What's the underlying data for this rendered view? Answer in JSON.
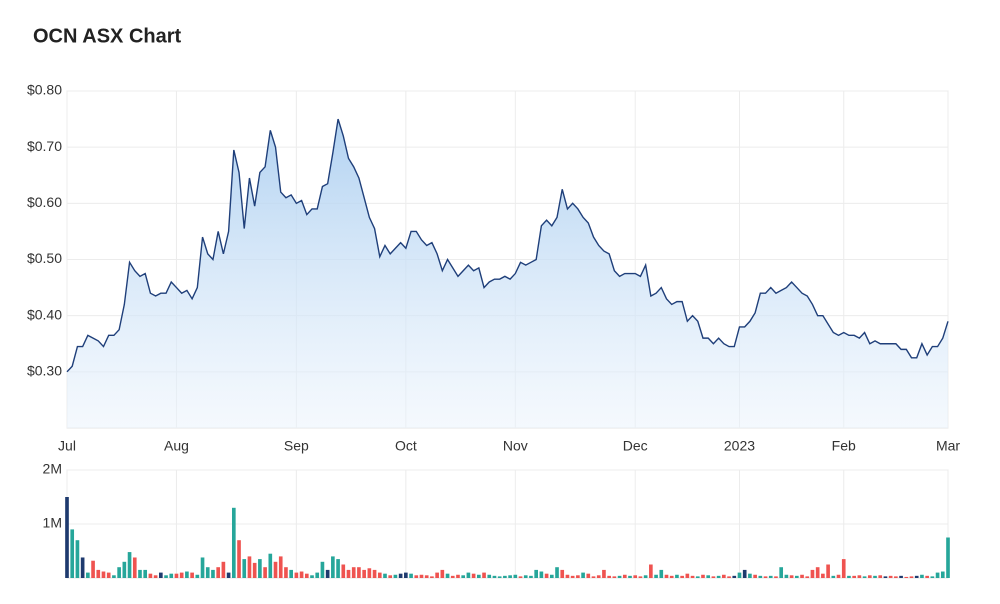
{
  "chart_data": [
    {
      "type": "area",
      "title": "OCN ASX Chart",
      "color": "#1f3f7a",
      "grid": true,
      "categories": [
        "Jul",
        null,
        null,
        null,
        null,
        null,
        null,
        null,
        null,
        null,
        null,
        null,
        null,
        null,
        null,
        null,
        null,
        null,
        null,
        null,
        null,
        "Aug",
        null,
        null,
        null,
        null,
        null,
        null,
        null,
        null,
        null,
        null,
        null,
        null,
        null,
        null,
        null,
        null,
        null,
        null,
        null,
        null,
        null,
        null,
        "Sep",
        null,
        null,
        null,
        null,
        null,
        null,
        null,
        null,
        null,
        null,
        null,
        null,
        null,
        null,
        null,
        null,
        null,
        null,
        null,
        null,
        "Oct",
        null,
        null,
        null,
        null,
        null,
        null,
        null,
        null,
        null,
        null,
        null,
        null,
        null,
        null,
        null,
        null,
        null,
        null,
        null,
        null,
        "Nov",
        null,
        null,
        null,
        null,
        null,
        null,
        null,
        null,
        null,
        null,
        null,
        null,
        null,
        null,
        null,
        null,
        null,
        null,
        null,
        null,
        null,
        null,
        "Dec",
        null,
        null,
        null,
        null,
        null,
        null,
        null,
        null,
        null,
        null,
        null,
        null,
        null,
        null,
        null,
        null,
        null,
        null,
        null,
        "2023",
        null,
        null,
        null,
        null,
        null,
        null,
        null,
        null,
        null,
        null,
        null,
        null,
        null,
        null,
        null,
        null,
        null,
        null,
        null,
        "Feb",
        null,
        null,
        null,
        null,
        null,
        null,
        null,
        null,
        null,
        null,
        null,
        null,
        null,
        null,
        null,
        null,
        null,
        null,
        null,
        "Mar"
      ],
      "values": [
        0.3,
        0.31,
        0.345,
        0.345,
        0.365,
        0.36,
        0.355,
        0.345,
        0.365,
        0.365,
        0.375,
        0.42,
        0.495,
        0.48,
        0.47,
        0.475,
        0.44,
        0.435,
        0.44,
        0.44,
        0.46,
        0.45,
        0.44,
        0.445,
        0.43,
        0.45,
        0.54,
        0.51,
        0.5,
        0.55,
        0.51,
        0.55,
        0.695,
        0.655,
        0.555,
        0.645,
        0.595,
        0.655,
        0.665,
        0.73,
        0.7,
        0.62,
        0.61,
        0.615,
        0.6,
        0.605,
        0.58,
        0.59,
        0.59,
        0.63,
        0.635,
        0.69,
        0.75,
        0.72,
        0.68,
        0.665,
        0.645,
        0.61,
        0.575,
        0.555,
        0.505,
        0.525,
        0.51,
        0.52,
        0.53,
        0.52,
        0.55,
        0.55,
        0.535,
        0.525,
        0.53,
        0.51,
        0.48,
        0.5,
        0.485,
        0.47,
        0.48,
        0.49,
        0.48,
        0.485,
        0.45,
        0.46,
        0.465,
        0.465,
        0.47,
        0.465,
        0.475,
        0.495,
        0.49,
        0.495,
        0.5,
        0.56,
        0.57,
        0.56,
        0.575,
        0.625,
        0.59,
        0.6,
        0.59,
        0.575,
        0.565,
        0.54,
        0.525,
        0.515,
        0.51,
        0.48,
        0.47,
        0.475,
        0.475,
        0.475,
        0.47,
        0.49,
        0.435,
        0.44,
        0.45,
        0.43,
        0.42,
        0.425,
        0.425,
        0.39,
        0.4,
        0.39,
        0.36,
        0.36,
        0.35,
        0.36,
        0.35,
        0.345,
        0.345,
        0.38,
        0.38,
        0.39,
        0.405,
        0.44,
        0.44,
        0.45,
        0.44,
        0.445,
        0.45,
        0.46,
        0.45,
        0.44,
        0.435,
        0.42,
        0.4,
        0.4,
        0.385,
        0.37,
        0.365,
        0.37,
        0.365,
        0.365,
        0.36,
        0.37,
        0.35,
        0.355,
        0.35,
        0.35,
        0.35,
        0.35,
        0.34,
        0.34,
        0.325,
        0.325,
        0.35,
        0.33,
        0.345,
        0.345,
        0.36,
        0.39
      ],
      "ylim": [
        0.2,
        0.8
      ],
      "yticks": [
        {
          "value": 0.3,
          "label": "$0.30"
        },
        {
          "value": 0.4,
          "label": "$0.40"
        },
        {
          "value": 0.5,
          "label": "$0.50"
        },
        {
          "value": 0.6,
          "label": "$0.60"
        },
        {
          "value": 0.7,
          "label": "$0.70"
        },
        {
          "value": 0.8,
          "label": "$0.80"
        }
      ]
    },
    {
      "type": "bar",
      "grid": true,
      "values": [
        1500000,
        900000,
        700000,
        380000,
        100000,
        320000,
        150000,
        120000,
        100000,
        50000,
        200000,
        300000,
        480000,
        380000,
        150000,
        150000,
        80000,
        50000,
        100000,
        50000,
        80000,
        80000,
        100000,
        120000,
        100000,
        60000,
        380000,
        200000,
        150000,
        200000,
        300000,
        100000,
        1300000,
        700000,
        350000,
        400000,
        280000,
        350000,
        200000,
        450000,
        300000,
        400000,
        200000,
        150000,
        100000,
        120000,
        80000,
        50000,
        100000,
        300000,
        150000,
        400000,
        350000,
        250000,
        150000,
        200000,
        200000,
        150000,
        180000,
        150000,
        100000,
        80000,
        50000,
        60000,
        80000,
        100000,
        80000,
        50000,
        60000,
        50000,
        30000,
        100000,
        150000,
        80000,
        40000,
        60000,
        50000,
        100000,
        80000,
        60000,
        100000,
        60000,
        40000,
        30000,
        40000,
        50000,
        60000,
        30000,
        50000,
        40000,
        150000,
        120000,
        80000,
        60000,
        200000,
        150000,
        60000,
        40000,
        50000,
        100000,
        80000,
        30000,
        50000,
        150000,
        40000,
        30000,
        40000,
        60000,
        40000,
        50000,
        30000,
        50000,
        250000,
        60000,
        150000,
        60000,
        40000,
        60000,
        40000,
        80000,
        40000,
        30000,
        60000,
        50000,
        30000,
        40000,
        60000,
        30000,
        40000,
        100000,
        150000,
        80000,
        60000,
        40000,
        30000,
        40000,
        30000,
        200000,
        60000,
        50000,
        40000,
        60000,
        30000,
        150000,
        200000,
        80000,
        250000,
        40000,
        60000,
        350000,
        40000,
        40000,
        50000,
        30000,
        50000,
        40000,
        50000,
        30000,
        40000,
        30000,
        40000,
        20000,
        30000,
        40000,
        60000,
        40000,
        30000,
        100000,
        120000,
        750000
      ],
      "colors": [
        "#1e3a6e",
        "#26a69a",
        "#26a69a",
        "#1e3a6e",
        "#26a69a",
        "#ef5350",
        "#ef5350",
        "#ef5350",
        "#ef5350",
        "#26a69a",
        "#26a69a",
        "#26a69a",
        "#26a69a",
        "#ef5350",
        "#26a69a",
        "#26a69a",
        "#ef5350",
        "#ef5350",
        "#1e3a6e",
        "#26a69a",
        "#26a69a",
        "#ef5350",
        "#ef5350",
        "#26a69a",
        "#ef5350",
        "#26a69a",
        "#26a69a",
        "#26a69a",
        "#26a69a",
        "#ef5350",
        "#ef5350",
        "#1e3a6e",
        "#26a69a",
        "#ef5350",
        "#26a69a",
        "#ef5350",
        "#ef5350",
        "#26a69a",
        "#ef5350",
        "#26a69a",
        "#ef5350",
        "#ef5350",
        "#ef5350",
        "#26a69a",
        "#ef5350",
        "#ef5350",
        "#ef5350",
        "#26a69a",
        "#26a69a",
        "#26a69a",
        "#1e3a6e",
        "#26a69a",
        "#26a69a",
        "#ef5350",
        "#ef5350",
        "#ef5350",
        "#ef5350",
        "#ef5350",
        "#ef5350",
        "#ef5350",
        "#ef5350",
        "#26a69a",
        "#ef5350",
        "#26a69a",
        "#1e3a6e",
        "#1e3a6e",
        "#26a69a",
        "#ef5350",
        "#ef5350",
        "#ef5350",
        "#ef5350",
        "#ef5350",
        "#ef5350",
        "#26a69a",
        "#ef5350",
        "#ef5350",
        "#26a69a",
        "#26a69a",
        "#ef5350",
        "#26a69a",
        "#ef5350",
        "#26a69a",
        "#26a69a",
        "#26a69a",
        "#26a69a",
        "#26a69a",
        "#26a69a",
        "#ef5350",
        "#26a69a",
        "#26a69a",
        "#26a69a",
        "#26a69a",
        "#ef5350",
        "#26a69a",
        "#26a69a",
        "#ef5350",
        "#ef5350",
        "#ef5350",
        "#ef5350",
        "#26a69a",
        "#ef5350",
        "#ef5350",
        "#ef5350",
        "#ef5350",
        "#ef5350",
        "#ef5350",
        "#26a69a",
        "#ef5350",
        "#26a69a",
        "#ef5350",
        "#ef5350",
        "#26a69a",
        "#ef5350",
        "#26a69a",
        "#26a69a",
        "#ef5350",
        "#ef5350",
        "#26a69a",
        "#ef5350",
        "#ef5350",
        "#ef5350",
        "#26a69a",
        "#ef5350",
        "#26a69a",
        "#ef5350",
        "#26a69a",
        "#ef5350",
        "#ef5350",
        "#1e3a6e",
        "#26a69a",
        "#1e3a6e",
        "#26a69a",
        "#ef5350",
        "#26a69a",
        "#ef5350",
        "#26a69a",
        "#ef5350",
        "#26a69a",
        "#26a69a",
        "#ef5350",
        "#26a69a",
        "#ef5350",
        "#ef5350",
        "#ef5350",
        "#ef5350",
        "#ef5350",
        "#ef5350",
        "#26a69a",
        "#ef5350",
        "#ef5350",
        "#26a69a",
        "#ef5350",
        "#ef5350",
        "#26a69a",
        "#ef5350",
        "#26a69a",
        "#ef5350",
        "#1e3a6e",
        "#ef5350",
        "#ef5350",
        "#1e3a6e",
        "#ef5350",
        "#ef5350",
        "#1e3a6e",
        "#26a69a",
        "#ef5350",
        "#26a69a",
        "#26a69a",
        "#26a69a",
        "#26a69a"
      ],
      "ylim": [
        0,
        2000000
      ],
      "yticks": [
        {
          "value": 1000000,
          "label": "1M"
        },
        {
          "value": 2000000,
          "label": "2M"
        }
      ]
    }
  ]
}
